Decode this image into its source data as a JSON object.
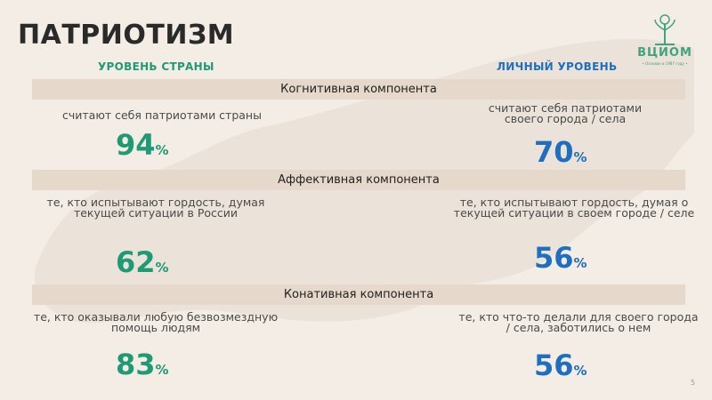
{
  "title": "ПАТРИОТИЗМ",
  "logo": {
    "name": "ВЦИОМ",
    "tagline": "• Основан в 1987 году •"
  },
  "columns": {
    "left_header": "УРОВЕНЬ СТРАНЫ",
    "right_header": "ЛИЧНЫЙ УРОВЕНЬ"
  },
  "sections": [
    {
      "band": "Когнитивная компонента",
      "left_text": "считают себя патриотами страны",
      "left_value": "94",
      "right_text": "считают себя патриотами своего города / села",
      "right_value": "70"
    },
    {
      "band": "Аффективная компонента",
      "left_text": "те, кто испытывают гордость, думая текущей ситуации в России",
      "left_value": "62",
      "right_text": "те, кто испытывают гордость, думая о текущей ситуации в своем городе / селе",
      "right_value": "56"
    },
    {
      "band": "Конативная компонента",
      "left_text": "те, кто оказывали любую безвозмездную помощь людям",
      "left_value": "83",
      "right_text": "те, кто что-то делали для своего города / села, заботились о нем",
      "right_value": "56"
    }
  ],
  "percent_sign": "%",
  "page_number": "5",
  "colors": {
    "green": "#1f9a75",
    "blue": "#1f6fbf",
    "band": "#e6d8cb",
    "background": "#f3ede6"
  }
}
